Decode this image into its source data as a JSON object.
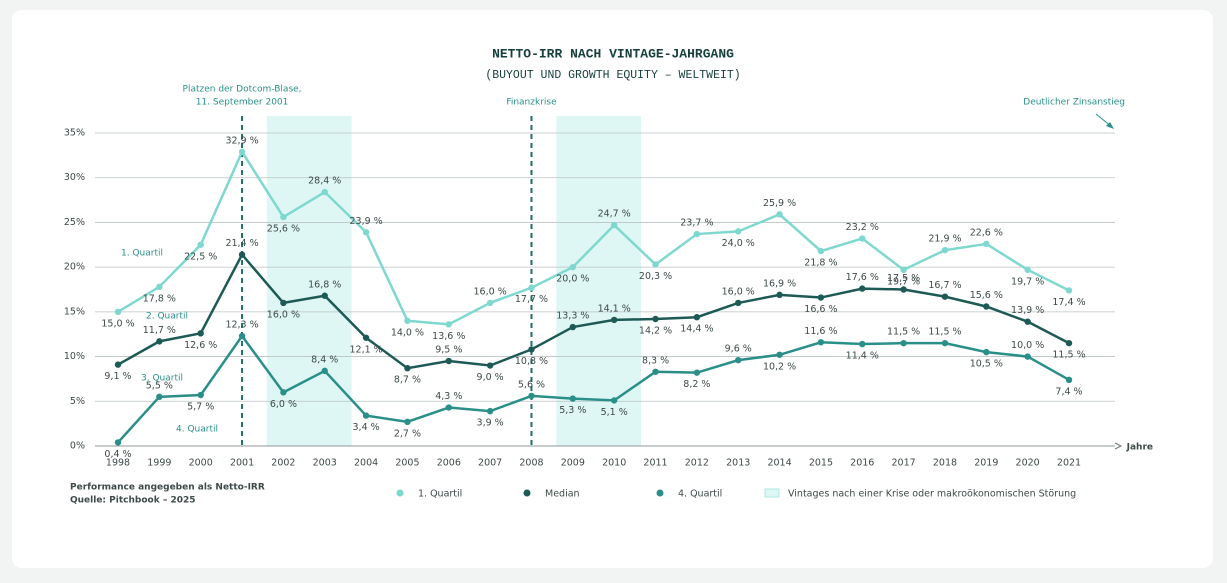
{
  "chart_data": {
    "type": "line",
    "title": "NETTO-IRR NACH VINTAGE-JAHRGANG",
    "subtitle": "(BUYOUT UND GROWTH EQUITY – WELTWEIT)",
    "x_label": "Jahre",
    "categories": [
      "1998",
      "1999",
      "2000",
      "2001",
      "2002",
      "2003",
      "2004",
      "2005",
      "2006",
      "2007",
      "2008",
      "2009",
      "2010",
      "2011",
      "2012",
      "2013",
      "2014",
      "2015",
      "2016",
      "2017",
      "2018",
      "2019",
      "2020",
      "2021"
    ],
    "ylim": [
      0,
      35
    ],
    "yticks": [
      {
        "value": 0,
        "label": "0%"
      },
      {
        "value": 5,
        "label": "5%"
      },
      {
        "value": 10,
        "label": "10%"
      },
      {
        "value": 15,
        "label": "15%"
      },
      {
        "value": 20,
        "label": "20%"
      },
      {
        "value": 25,
        "label": "25%"
      },
      {
        "value": 30,
        "label": "30%"
      },
      {
        "value": 35,
        "label": "35%"
      }
    ],
    "grid": true,
    "series": [
      {
        "name": "1. Quartil",
        "color": "#7fd8cf",
        "values": [
          15.0,
          17.8,
          22.5,
          32.9,
          25.6,
          28.4,
          23.9,
          14.0,
          13.6,
          16.0,
          17.7,
          20.0,
          24.7,
          20.3,
          23.7,
          24.0,
          25.9,
          21.8,
          23.2,
          19.7,
          21.9,
          22.6,
          19.7,
          17.4
        ],
        "value_labels": [
          "15,0 %",
          "17,8 %",
          "22,5 %",
          "32,9 %",
          "25,6 %",
          "28,4 %",
          "23,9 %",
          "14,0 %",
          "13,6 %",
          "16,0 %",
          "17,7 %",
          "20,0 %",
          "24,7 %",
          "20,3 %",
          "23,7 %",
          "24,0 %",
          "25,9 %",
          "21,8 %",
          "23,2 %",
          "19,7 %",
          "21,9 %",
          "22,6 %",
          "19,7 %",
          "17,4 %"
        ]
      },
      {
        "name": "Median",
        "color": "#1d5a56",
        "values": [
          9.1,
          11.7,
          12.6,
          21.4,
          16.0,
          16.8,
          12.1,
          8.7,
          9.5,
          9.0,
          10.8,
          13.3,
          14.1,
          14.2,
          14.4,
          16.0,
          16.9,
          16.6,
          17.6,
          17.5,
          16.7,
          15.6,
          13.9,
          11.5
        ],
        "value_labels": [
          "9,1 %",
          "11,7 %",
          "12,6 %",
          "21,4 %",
          "16,0 %",
          "16,8 %",
          "12,1 %",
          "8,7 %",
          "9,5 %",
          "9,0 %",
          "10,8 %",
          "13,3 %",
          "14,1 %",
          "14,2 %",
          "14,4 %",
          "16,0 %",
          "16,9 %",
          "16,6 %",
          "17,6 %",
          "17,5 %",
          "16,7 %",
          "15,6 %",
          "13,9 %",
          "11,5 %"
        ]
      },
      {
        "name": "4. Quartil",
        "color": "#2a8f89",
        "values": [
          0.4,
          5.5,
          5.7,
          12.3,
          6.0,
          8.4,
          3.4,
          2.7,
          4.3,
          3.9,
          5.6,
          5.3,
          5.1,
          8.3,
          8.2,
          9.6,
          10.2,
          11.6,
          11.4,
          11.5,
          11.5,
          10.5,
          10.0,
          7.4
        ],
        "value_labels": [
          "0,4 %",
          "5,5 %",
          "5,7 %",
          "12,3 %",
          "6,0 %",
          "8,4 %",
          "3,4 %",
          "2,7 %",
          "4,3 %",
          "3,9 %",
          "5,6 %",
          "5,3 %",
          "5,1 %",
          "8,3 %",
          "8,2 %",
          "9,6 %",
          "10,2 %",
          "11,6 %",
          "11,4 %",
          "11,5 %",
          "11,5 %",
          "10,5 %",
          "10,0 %",
          "7,4 %"
        ]
      }
    ],
    "line_labels": [
      "1. Quartil",
      "2. Quartil",
      "3. Quartil",
      "4. Quartil"
    ],
    "shaded_regions": [
      {
        "from": "2002",
        "to": "2003"
      },
      {
        "from": "2009",
        "to": "2010"
      }
    ],
    "shade_color": "#def7f5",
    "shade_legend": "Vintages nach einer Krise oder makroökonomischen Störung",
    "events": [
      {
        "x": "2001",
        "label": [
          "Platzen der Dotcom-Blase,",
          "11. September 2001"
        ]
      },
      {
        "x": "2008",
        "label": [
          "Finanzkrise"
        ]
      }
    ],
    "arrow_note": "Deutlicher Zinsanstieg",
    "footnotes": [
      "Performance angegeben als Netto-IRR",
      "Quelle: Pitchbook – 2025"
    ]
  }
}
